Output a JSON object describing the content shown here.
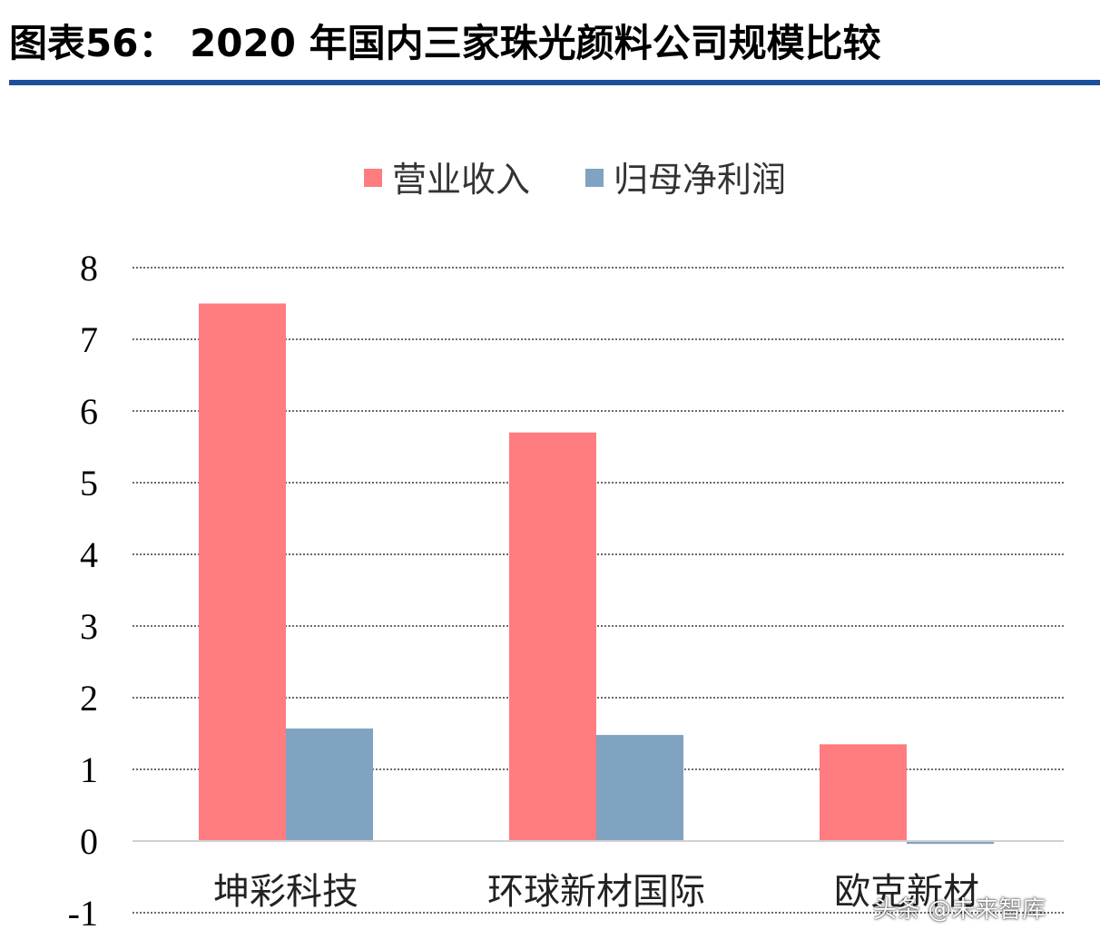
{
  "header": {
    "figure_title": "图表56：  2020 年国内三家珠光颜料公司规模比较",
    "rule_color": "#1a4f9c"
  },
  "watermark": "头条 @未来智库",
  "chart_data": {
    "type": "bar",
    "categories": [
      "坤彩科技",
      "环球新材国际",
      "欧克新材"
    ],
    "series": [
      {
        "name": "营业收入",
        "values": [
          7.5,
          5.7,
          1.35
        ],
        "color": "#ff7c80"
      },
      {
        "name": "归母净利润",
        "values": [
          1.57,
          1.48,
          -0.04
        ],
        "color": "#7fa3c0"
      }
    ],
    "ylim": [
      -1,
      8
    ],
    "yticks": [
      8,
      7,
      6,
      5,
      4,
      3,
      2,
      1,
      0,
      -1
    ],
    "grid": true,
    "legend_position": "top-center",
    "title": "",
    "xlabel": "",
    "ylabel": ""
  }
}
